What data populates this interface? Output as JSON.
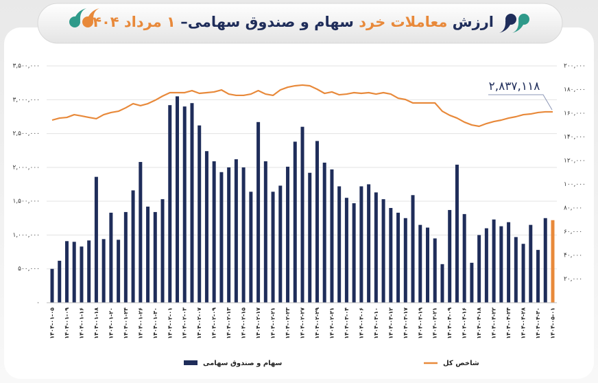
{
  "chart_data": {
    "type": "bar_line",
    "title_parts": [
      {
        "text": "ارزش",
        "color": "#1f2d5a"
      },
      {
        "text": "معاملات خرد",
        "color": "#e8893a"
      },
      {
        "text": "سهام و صندوق سهامی–",
        "color": "#1f2d5a"
      },
      {
        "text": "۱ مرداد ۱۴۰۴",
        "color": "#e8893a"
      }
    ],
    "categories": [
      "۱۴۰۴-۰۱-۰۵",
      null,
      "۱۴۰۴-۰۱-۰۹",
      null,
      "۱۴۰۴-۰۱-۱۶",
      null,
      "۱۴۰۴-۰۱-۱۸",
      null,
      "۱۴۰۴-۰۱-۲۰",
      null,
      "۱۴۰۴-۰۱-۲۴",
      null,
      "۱۴۰۴-۰۱-۲۶",
      null,
      "۱۴۰۴-۰۱-۳۰",
      null,
      "۱۴۰۴-۰۲-۰۱",
      null,
      "۱۴۰۴-۰۲-۰۳",
      null,
      "۱۴۰۴-۰۲-۰۷",
      null,
      "۱۴۰۴-۰۲-۰۹",
      null,
      "۱۴۰۴-۰۲-۱۳",
      null,
      "۱۴۰۴-۰۲-۱۵",
      null,
      "۱۴۰۴-۰۲-۱۷",
      null,
      "۱۴۰۴-۰۲-۲۱",
      null,
      "۱۴۰۴-۰۲-۲۳",
      null,
      "۱۴۰۴-۰۲-۲۷",
      null,
      "۱۴۰۴-۰۲-۲۹",
      null,
      "۱۴۰۴-۰۲-۳۱",
      null,
      "۱۴۰۴-۰۳-۰۴",
      null,
      "۱۴۰۴-۰۳-۰۶",
      null,
      "۱۴۰۴-۰۳-۱۰",
      null,
      "۱۴۰۴-۰۳-۱۲",
      null,
      "۱۴۰۴-۰۳-۱۷",
      null,
      "۱۴۰۴-۰۳-۱۹",
      null,
      "۱۴۰۴-۰۳-۲۱",
      null,
      "۱۴۰۴-۰۴-۰۹",
      null,
      "۱۴۰۴-۰۴-۱۶",
      null,
      "۱۴۰۴-۰۴-۱۸",
      null,
      "۱۴۰۴-۰۴-۲۲",
      null,
      "۱۴۰۴-۰۴-۲۴",
      null,
      "۱۴۰۴-۰۴-۲۸",
      null,
      "۱۴۰۴-۰۴-۳۰",
      null,
      "۱۴۰۴-۰۵-۰۱"
    ],
    "series": [
      {
        "name": "سهام و صندوق سهامی",
        "type": "bar",
        "color": "#1f2d5a",
        "highlight": {
          "index": 68,
          "color": "#e8893a"
        },
        "values": [
          500000,
          620000,
          910000,
          900000,
          830000,
          920000,
          1860000,
          940000,
          1330000,
          930000,
          1340000,
          1660000,
          2080000,
          1420000,
          1340000,
          1530000,
          2920000,
          3050000,
          2900000,
          2950000,
          2620000,
          2240000,
          2090000,
          1930000,
          2000000,
          2120000,
          2000000,
          1640000,
          2670000,
          2090000,
          1640000,
          1730000,
          2010000,
          2380000,
          2600000,
          1920000,
          2390000,
          2070000,
          1970000,
          1720000,
          1550000,
          1470000,
          1720000,
          1750000,
          1630000,
          1530000,
          1400000,
          1330000,
          1250000,
          1590000,
          1150000,
          1110000,
          950000,
          570000,
          1370000,
          2040000,
          1310000,
          590000,
          1000000,
          1100000,
          1230000,
          1130000,
          1190000,
          970000,
          870000,
          1150000,
          780000,
          1250000,
          1220000
        ]
      },
      {
        "name": "شاخص کل",
        "type": "line",
        "axis": "y2",
        "color": "#e8893a",
        "values": [
          154200,
          155900,
          156500,
          158800,
          157700,
          156500,
          155400,
          158800,
          160600,
          161700,
          164600,
          168100,
          166400,
          168100,
          171000,
          174500,
          177400,
          177400,
          177400,
          179100,
          176800,
          177400,
          178000,
          179700,
          176200,
          175100,
          175100,
          176200,
          179100,
          176200,
          175100,
          179700,
          182000,
          183200,
          183800,
          183200,
          180300,
          176800,
          178000,
          175600,
          176200,
          177400,
          176800,
          177400,
          176200,
          177400,
          176200,
          172700,
          171600,
          168700,
          168700,
          168700,
          168700,
          161700,
          158300,
          155900,
          152500,
          150100,
          149000,
          151300,
          153000,
          154200,
          155900,
          157100,
          158800,
          159400,
          160600,
          161200,
          161200
        ]
      }
    ],
    "annotation": "۲,۸۳۷,۱۱۸",
    "ylim": [
      0,
      3500000
    ],
    "yticks": [
      {
        "value": 0,
        "label": "۰"
      },
      {
        "value": 500000,
        "label": "۵۰۰,۰۰۰"
      },
      {
        "value": 1000000,
        "label": "۱,۰۰۰,۰۰۰"
      },
      {
        "value": 1500000,
        "label": "۱,۵۰۰,۰۰۰"
      },
      {
        "value": 2000000,
        "label": "۲,۰۰۰,۰۰۰"
      },
      {
        "value": 2500000,
        "label": "۲,۵۰۰,۰۰۰"
      },
      {
        "value": 3000000,
        "label": "۳,۰۰۰,۰۰۰"
      },
      {
        "value": 3500000,
        "label": "۳,۵۰۰,۰۰۰"
      }
    ],
    "y2lim": [
      0,
      200000
    ],
    "y2ticks": [
      {
        "value": 20000,
        "label": "۲۰,۰۰۰"
      },
      {
        "value": 40000,
        "label": "۴۰,۰۰۰"
      },
      {
        "value": 60000,
        "label": "۶۰,۰۰۰"
      },
      {
        "value": 80000,
        "label": "۸۰,۰۰۰"
      },
      {
        "value": 100000,
        "label": "۱۰۰,۰۰۰"
      },
      {
        "value": 120000,
        "label": "۱۲۰,۰۰۰"
      },
      {
        "value": 140000,
        "label": "۱۴۰,۰۰۰"
      },
      {
        "value": 160000,
        "label": "۱۶۰,۰۰۰"
      },
      {
        "value": 180000,
        "label": "۱۸۰,۰۰۰"
      },
      {
        "value": 200000,
        "label": "۲۰۰,۰۰۰"
      }
    ],
    "grid": true
  }
}
